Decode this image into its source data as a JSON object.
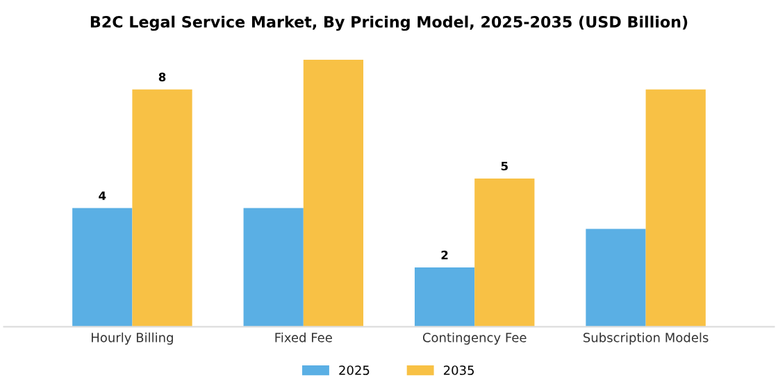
{
  "chart_data": {
    "type": "bar",
    "title": "B2C Legal Service Market, By Pricing Model, 2025-2035 (USD Billion)",
    "categories": [
      "Hourly Billing",
      "Fixed Fee",
      "Contingency Fee",
      "Subscription Models"
    ],
    "series": [
      {
        "name": "2025",
        "color": "#5aafe4",
        "values": [
          4.0,
          4.0,
          2.0,
          3.3
        ],
        "value_labels": [
          "4",
          null,
          "2",
          null
        ]
      },
      {
        "name": "2035",
        "color": "#f8c145",
        "values": [
          8.0,
          9.0,
          5.0,
          8.0
        ],
        "value_labels": [
          "8",
          null,
          "5",
          null
        ]
      }
    ],
    "legend": "bottom",
    "grid": false
  }
}
